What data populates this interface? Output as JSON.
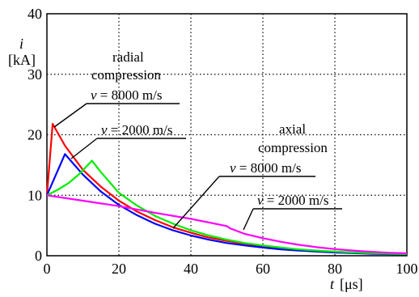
{
  "chart_data": {
    "type": "line",
    "xlabel_var": "t",
    "xlabel_unit": "[μs]",
    "ylabel_var": "i",
    "ylabel_unit": "[kA]",
    "xlim": [
      0,
      100
    ],
    "ylim": [
      0,
      40
    ],
    "x_ticks": [
      "0",
      "20",
      "40",
      "60",
      "80",
      "100"
    ],
    "y_ticks": [
      "0",
      "10",
      "20",
      "30",
      "40"
    ],
    "grid": true,
    "grid_style": "dotted",
    "annotations": {
      "radial": "radial",
      "radial_compression": "compression",
      "axial": "axial",
      "axial_compression": "compression",
      "v_var": "v",
      "radial_v8000": " = 8000 m/s",
      "radial_v2000": " = 2000 m/s",
      "axial_v8000": " = 8000 m/s",
      "axial_v2000": " = 2000 m/s"
    },
    "series": [
      {
        "color": "#ff0000",
        "points": [
          [
            0,
            10
          ],
          [
            1.6,
            21.8
          ],
          [
            5,
            18.2
          ],
          [
            10,
            14.2
          ],
          [
            15,
            11.4
          ],
          [
            20,
            9.1
          ],
          [
            25,
            7.3
          ],
          [
            30,
            5.9
          ],
          [
            35,
            4.7
          ],
          [
            40,
            3.8
          ],
          [
            45,
            3.0
          ],
          [
            50,
            2.45
          ],
          [
            55,
            1.95
          ],
          [
            60,
            1.55
          ],
          [
            65,
            1.25
          ],
          [
            70,
            1.0
          ],
          [
            75,
            0.8
          ],
          [
            80,
            0.65
          ],
          [
            85,
            0.52
          ],
          [
            90,
            0.42
          ],
          [
            95,
            0.34
          ],
          [
            100,
            0.27
          ]
        ]
      },
      {
        "color": "#0000ff",
        "points": [
          [
            0,
            10
          ],
          [
            5,
            16.8
          ],
          [
            10,
            13.4
          ],
          [
            15,
            10.6
          ],
          [
            20,
            8.4
          ],
          [
            25,
            6.7
          ],
          [
            30,
            5.3
          ],
          [
            35,
            4.2
          ],
          [
            40,
            3.35
          ],
          [
            45,
            2.65
          ],
          [
            50,
            2.1
          ],
          [
            55,
            1.7
          ],
          [
            60,
            1.35
          ],
          [
            65,
            1.05
          ],
          [
            70,
            0.85
          ],
          [
            75,
            0.68
          ],
          [
            80,
            0.54
          ],
          [
            85,
            0.43
          ],
          [
            90,
            0.34
          ],
          [
            95,
            0.27
          ],
          [
            100,
            0.22
          ]
        ]
      },
      {
        "color": "#00ee00",
        "points": [
          [
            0,
            10
          ],
          [
            3,
            10.9
          ],
          [
            6,
            12.0
          ],
          [
            9,
            13.5
          ],
          [
            12.5,
            15.7
          ],
          [
            15,
            13.8
          ],
          [
            20,
            10.4
          ],
          [
            25,
            8.3
          ],
          [
            30,
            6.6
          ],
          [
            35,
            5.3
          ],
          [
            40,
            4.2
          ],
          [
            45,
            3.35
          ],
          [
            50,
            2.65
          ],
          [
            55,
            2.1
          ],
          [
            60,
            1.7
          ],
          [
            65,
            1.35
          ],
          [
            70,
            1.05
          ],
          [
            75,
            0.85
          ],
          [
            80,
            0.68
          ],
          [
            85,
            0.54
          ],
          [
            90,
            0.43
          ],
          [
            95,
            0.34
          ],
          [
            100,
            0.27
          ]
        ]
      },
      {
        "color": "#ff00ff",
        "points": [
          [
            0,
            10
          ],
          [
            10,
            9.1
          ],
          [
            20,
            8.2
          ],
          [
            30,
            7.1
          ],
          [
            40,
            6.1
          ],
          [
            50,
            4.9
          ],
          [
            51,
            4.5
          ],
          [
            55,
            3.6
          ],
          [
            60,
            2.9
          ],
          [
            65,
            2.3
          ],
          [
            70,
            1.8
          ],
          [
            75,
            1.4
          ],
          [
            80,
            1.1
          ],
          [
            85,
            0.85
          ],
          [
            90,
            0.65
          ],
          [
            95,
            0.5
          ],
          [
            100,
            0.4
          ]
        ]
      }
    ]
  }
}
